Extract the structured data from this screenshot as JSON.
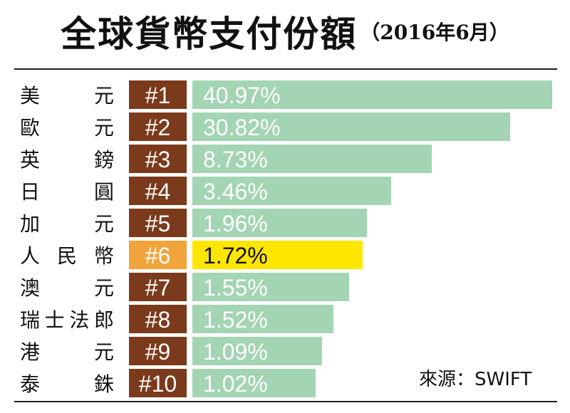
{
  "title": "全球貨幣支付份額",
  "subtitle": "（2016年6月）",
  "source": "來源：SWIFT",
  "colors": {
    "rank_box": "#7a3a1b",
    "rank_box_highlight": "#f1a43c",
    "bar": "#a3d4b4",
    "bar_highlight": "#ffe600",
    "text_light": "#ffffff",
    "text_dark": "#111111"
  },
  "chart_data": {
    "type": "bar",
    "orientation": "horizontal",
    "categories": [
      "美　元",
      "歐　元",
      "英　鎊",
      "日　圓",
      "加　元",
      "人民幣",
      "澳　元",
      "瑞士法郎",
      "港　元",
      "泰　銖"
    ],
    "ranks": [
      "#1",
      "#2",
      "#3",
      "#4",
      "#5",
      "#6",
      "#7",
      "#8",
      "#9",
      "#10"
    ],
    "values": [
      40.97,
      30.82,
      8.73,
      3.46,
      1.96,
      1.72,
      1.55,
      1.52,
      1.09,
      1.02
    ],
    "value_labels": [
      "40.97%",
      "30.82%",
      "8.73%",
      "3.46%",
      "1.96%",
      "1.72%",
      "1.55%",
      "1.52%",
      "1.09%",
      "1.02%"
    ],
    "highlight_index": 5,
    "bar_scale": "not proportional"
  }
}
